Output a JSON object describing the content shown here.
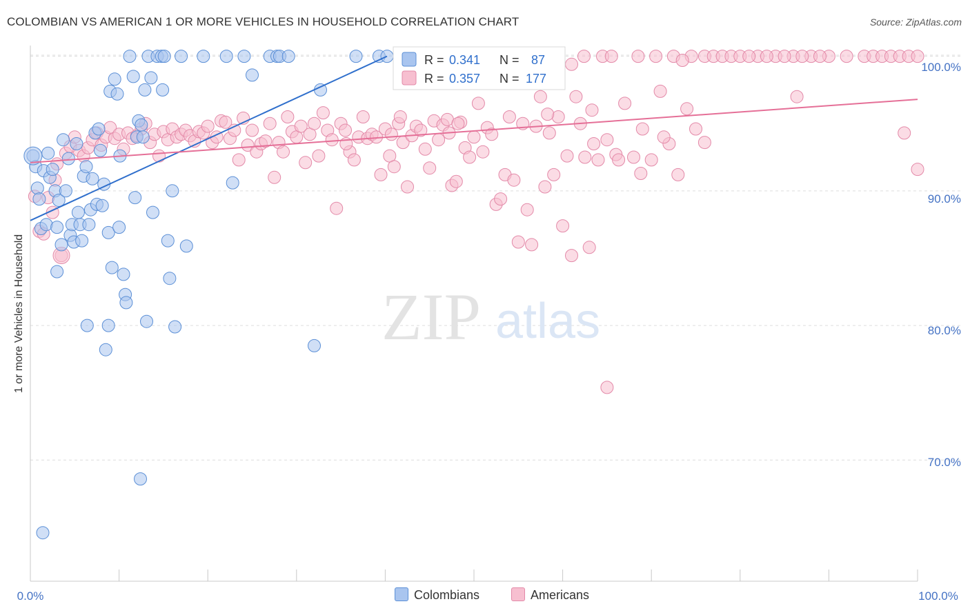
{
  "title": "COLOMBIAN VS AMERICAN 1 OR MORE VEHICLES IN HOUSEHOLD CORRELATION CHART",
  "source": "Source: ZipAtlas.com",
  "watermark": {
    "zip": "ZIP",
    "atlas": "atlas"
  },
  "colors": {
    "colombians_fill": "#a9c5ef",
    "colombians_stroke": "#5b8fd6",
    "colombians_line": "#2f6fcc",
    "americans_fill": "#f7bfd0",
    "americans_stroke": "#e389a8",
    "americans_line": "#e56f97",
    "axis_text": "#4472c4",
    "grid": "#dddddd"
  },
  "legend": {
    "rows": [
      {
        "r_label": "R =",
        "r_value": "0.341",
        "n_label": "N =",
        "n_value": "87"
      },
      {
        "r_label": "R =",
        "r_value": "0.357",
        "n_label": "N =",
        "n_value": "177"
      }
    ]
  },
  "bottom_legend": [
    "Colombians",
    "Americans"
  ],
  "chart_data": {
    "type": "scatter",
    "title": "COLOMBIAN VS AMERICAN 1 OR MORE VEHICLES IN HOUSEHOLD CORRELATION CHART",
    "xlabel": "",
    "ylabel": "1 or more Vehicles in Household",
    "xlim": [
      0,
      100
    ],
    "ylim": [
      61.0,
      100.8
    ],
    "x_tick_labels": [
      "0.0%",
      "100.0%"
    ],
    "y_ticks": [
      70,
      80,
      90,
      100
    ],
    "y_tick_labels": [
      "70.0%",
      "80.0%",
      "90.0%",
      "100.0%"
    ],
    "grid": true,
    "legend_position": "top-center",
    "series": [
      {
        "name": "Colombians",
        "r": 0.341,
        "n": 87,
        "trend": {
          "x0": 0,
          "y0": 87.8,
          "x1": 40.2,
          "y1": 100.0
        },
        "points": [
          [
            0.3,
            92.6
          ],
          [
            0.6,
            91.8
          ],
          [
            0.8,
            90.2
          ],
          [
            1.0,
            89.4
          ],
          [
            1.2,
            87.2
          ],
          [
            1.5,
            91.5
          ],
          [
            1.8,
            87.5
          ],
          [
            2.0,
            92.8
          ],
          [
            2.2,
            91.0
          ],
          [
            2.5,
            91.6
          ],
          [
            2.8,
            90.0
          ],
          [
            3.0,
            87.3
          ],
          [
            3.2,
            89.3
          ],
          [
            3.5,
            86.0
          ],
          [
            3.7,
            93.8
          ],
          [
            4.0,
            90.0
          ],
          [
            4.3,
            92.4
          ],
          [
            4.5,
            86.7
          ],
          [
            4.7,
            87.5
          ],
          [
            4.9,
            86.2
          ],
          [
            5.2,
            93.5
          ],
          [
            5.4,
            88.4
          ],
          [
            5.6,
            87.5
          ],
          [
            5.8,
            86.3
          ],
          [
            6.0,
            91.1
          ],
          [
            6.3,
            91.8
          ],
          [
            6.6,
            87.5
          ],
          [
            6.8,
            88.6
          ],
          [
            7.0,
            90.9
          ],
          [
            7.3,
            94.3
          ],
          [
            7.5,
            89.0
          ],
          [
            7.7,
            94.6
          ],
          [
            7.9,
            93.0
          ],
          [
            8.1,
            88.9
          ],
          [
            8.3,
            90.5
          ],
          [
            8.5,
            78.2
          ],
          [
            8.8,
            86.9
          ],
          [
            9.0,
            97.4
          ],
          [
            9.2,
            84.3
          ],
          [
            9.5,
            98.3
          ],
          [
            9.8,
            97.2
          ],
          [
            10.0,
            87.3
          ],
          [
            10.1,
            92.6
          ],
          [
            10.5,
            83.8
          ],
          [
            10.7,
            82.3
          ],
          [
            10.8,
            81.7
          ],
          [
            11.2,
            100.0
          ],
          [
            11.6,
            98.5
          ],
          [
            11.8,
            89.5
          ],
          [
            12.0,
            94.0
          ],
          [
            12.2,
            95.2
          ],
          [
            12.5,
            94.9
          ],
          [
            12.7,
            94.0
          ],
          [
            12.9,
            97.5
          ],
          [
            13.1,
            80.3
          ],
          [
            13.3,
            100.0
          ],
          [
            13.6,
            98.4
          ],
          [
            13.8,
            88.4
          ],
          [
            14.3,
            100.0
          ],
          [
            14.8,
            100.0
          ],
          [
            14.9,
            97.5
          ],
          [
            15.1,
            100.0
          ],
          [
            15.5,
            86.3
          ],
          [
            15.7,
            83.5
          ],
          [
            16.0,
            90.0
          ],
          [
            16.3,
            79.9
          ],
          [
            17.0,
            100.0
          ],
          [
            17.6,
            85.9
          ],
          [
            19.5,
            100.0
          ],
          [
            22.1,
            100.0
          ],
          [
            22.8,
            90.6
          ],
          [
            24.1,
            100.0
          ],
          [
            25.0,
            98.6
          ],
          [
            27.0,
            100.0
          ],
          [
            27.8,
            100.0
          ],
          [
            28.1,
            100.0
          ],
          [
            29.1,
            100.0
          ],
          [
            32.7,
            97.5
          ],
          [
            32.0,
            78.5
          ],
          [
            36.7,
            100.0
          ],
          [
            39.3,
            100.0
          ],
          [
            40.2,
            100.0
          ],
          [
            12.4,
            68.6
          ],
          [
            1.4,
            64.6
          ],
          [
            3.0,
            84.0
          ],
          [
            8.8,
            80.0
          ],
          [
            6.4,
            80.0
          ]
        ]
      },
      {
        "name": "Americans",
        "r": 0.357,
        "n": 177,
        "trend": {
          "x0": 0,
          "y0": 92.1,
          "x1": 100,
          "y1": 96.8
        },
        "points": [
          [
            0.5,
            89.6
          ],
          [
            1.0,
            87.0
          ],
          [
            1.5,
            86.8
          ],
          [
            2.0,
            89.5
          ],
          [
            2.5,
            88.4
          ],
          [
            2.8,
            90.8
          ],
          [
            3.0,
            92.0
          ],
          [
            3.5,
            85.2
          ],
          [
            4.0,
            92.8
          ],
          [
            4.5,
            93.3
          ],
          [
            5.0,
            94.0
          ],
          [
            5.5,
            93.0
          ],
          [
            6.0,
            92.6
          ],
          [
            6.5,
            93.2
          ],
          [
            7.0,
            93.8
          ],
          [
            7.5,
            94.3
          ],
          [
            8.0,
            93.4
          ],
          [
            8.5,
            94.0
          ],
          [
            9.0,
            94.7
          ],
          [
            9.5,
            93.9
          ],
          [
            10.0,
            94.2
          ],
          [
            10.5,
            93.1
          ],
          [
            11.0,
            94.3
          ],
          [
            11.5,
            93.9
          ],
          [
            12.0,
            94.1
          ],
          [
            12.5,
            94.6
          ],
          [
            13.0,
            95.0
          ],
          [
            13.5,
            93.6
          ],
          [
            14.0,
            94.2
          ],
          [
            14.5,
            92.6
          ],
          [
            15.0,
            94.4
          ],
          [
            15.5,
            93.8
          ],
          [
            16.0,
            94.6
          ],
          [
            16.5,
            94.0
          ],
          [
            17.0,
            94.2
          ],
          [
            17.5,
            94.5
          ],
          [
            18.0,
            94.1
          ],
          [
            18.5,
            93.7
          ],
          [
            19.0,
            94.4
          ],
          [
            19.5,
            94.3
          ],
          [
            20.0,
            94.8
          ],
          [
            20.5,
            93.6
          ],
          [
            21.0,
            94.0
          ],
          [
            21.5,
            95.2
          ],
          [
            22.0,
            95.1
          ],
          [
            22.5,
            93.9
          ],
          [
            23.0,
            94.5
          ],
          [
            23.5,
            92.3
          ],
          [
            24.0,
            95.4
          ],
          [
            24.5,
            93.4
          ],
          [
            25.0,
            94.5
          ],
          [
            25.5,
            92.9
          ],
          [
            26.0,
            93.5
          ],
          [
            26.5,
            93.7
          ],
          [
            27.0,
            95.0
          ],
          [
            27.5,
            91.0
          ],
          [
            28.0,
            93.6
          ],
          [
            28.5,
            92.9
          ],
          [
            29.0,
            95.5
          ],
          [
            29.5,
            94.4
          ],
          [
            30.0,
            94.0
          ],
          [
            30.5,
            94.8
          ],
          [
            31.0,
            92.1
          ],
          [
            31.5,
            94.2
          ],
          [
            32.0,
            95.0
          ],
          [
            32.5,
            92.6
          ],
          [
            33.0,
            95.8
          ],
          [
            33.5,
            94.5
          ],
          [
            34.0,
            93.8
          ],
          [
            34.5,
            88.7
          ],
          [
            35.0,
            95.0
          ],
          [
            35.5,
            94.5
          ],
          [
            36.0,
            92.9
          ],
          [
            36.5,
            92.3
          ],
          [
            37.0,
            94.0
          ],
          [
            37.5,
            95.5
          ],
          [
            38.0,
            93.9
          ],
          [
            38.5,
            94.2
          ],
          [
            39.0,
            94.0
          ],
          [
            39.5,
            91.2
          ],
          [
            40.0,
            94.6
          ],
          [
            40.5,
            92.6
          ],
          [
            41.0,
            91.8
          ],
          [
            41.5,
            95.0
          ],
          [
            42.0,
            93.6
          ],
          [
            42.5,
            90.3
          ],
          [
            43.0,
            94.1
          ],
          [
            43.5,
            94.8
          ],
          [
            44.0,
            94.5
          ],
          [
            44.5,
            93.1
          ],
          [
            45.0,
            91.7
          ],
          [
            45.5,
            95.2
          ],
          [
            46.0,
            93.8
          ],
          [
            46.5,
            94.9
          ],
          [
            47.0,
            95.3
          ],
          [
            47.5,
            90.4
          ],
          [
            48.0,
            90.7
          ],
          [
            48.5,
            95.1
          ],
          [
            49.0,
            93.2
          ],
          [
            49.5,
            92.5
          ],
          [
            50.0,
            94.0
          ],
          [
            50.5,
            96.5
          ],
          [
            51.0,
            92.9
          ],
          [
            51.5,
            94.7
          ],
          [
            52.0,
            94.2
          ],
          [
            52.5,
            89.0
          ],
          [
            53.0,
            89.4
          ],
          [
            53.5,
            91.2
          ],
          [
            54.0,
            95.5
          ],
          [
            54.5,
            90.8
          ],
          [
            55.0,
            86.2
          ],
          [
            55.5,
            95.0
          ],
          [
            56.0,
            88.6
          ],
          [
            56.5,
            86.0
          ],
          [
            57.0,
            94.8
          ],
          [
            57.5,
            97.0
          ],
          [
            58.0,
            90.3
          ],
          [
            58.5,
            94.3
          ],
          [
            59.0,
            91.2
          ],
          [
            59.5,
            95.5
          ],
          [
            60.0,
            87.4
          ],
          [
            60.5,
            92.6
          ],
          [
            61.0,
            85.2
          ],
          [
            61.5,
            97.0
          ],
          [
            62.0,
            95.0
          ],
          [
            62.5,
            92.5
          ],
          [
            63.0,
            85.8
          ],
          [
            63.5,
            93.5
          ],
          [
            64.0,
            92.3
          ],
          [
            65.0,
            93.8
          ],
          [
            66.0,
            92.7
          ],
          [
            67.0,
            96.5
          ],
          [
            68.0,
            92.5
          ],
          [
            69.0,
            94.6
          ],
          [
            70.0,
            92.3
          ],
          [
            71.0,
            97.4
          ],
          [
            72.0,
            93.5
          ],
          [
            73.0,
            91.2
          ],
          [
            74.0,
            96.1
          ],
          [
            75.0,
            94.6
          ],
          [
            76.0,
            100.0
          ],
          [
            77.0,
            100.0
          ],
          [
            78.0,
            100.0
          ],
          [
            79.0,
            100.0
          ],
          [
            80.0,
            100.0
          ],
          [
            82.0,
            100.0
          ],
          [
            84.0,
            100.0
          ],
          [
            86.0,
            100.0
          ],
          [
            88.0,
            100.0
          ],
          [
            90.0,
            100.0
          ],
          [
            92.0,
            100.0
          ],
          [
            94.0,
            100.0
          ],
          [
            95.0,
            100.0
          ],
          [
            96.0,
            100.0
          ],
          [
            97.0,
            100.0
          ],
          [
            98.0,
            100.0
          ],
          [
            99.0,
            100.0
          ],
          [
            100.0,
            100.0
          ],
          [
            62.4,
            100.0
          ],
          [
            64.5,
            100.0
          ],
          [
            65.5,
            100.0
          ],
          [
            68.5,
            100.0
          ],
          [
            70.5,
            100.0
          ],
          [
            72.5,
            100.0
          ],
          [
            74.5,
            100.0
          ],
          [
            81.0,
            100.0
          ],
          [
            83.0,
            100.0
          ],
          [
            85.0,
            100.0
          ],
          [
            87.0,
            100.0
          ],
          [
            89.0,
            100.0
          ],
          [
            65.0,
            75.4
          ],
          [
            61.0,
            99.4
          ],
          [
            73.5,
            99.7
          ],
          [
            86.4,
            97.0
          ],
          [
            98.5,
            94.3
          ],
          [
            100.0,
            91.6
          ],
          [
            47.2,
            94.3
          ],
          [
            48.2,
            95.0
          ],
          [
            35.6,
            93.5
          ],
          [
            40.7,
            94.2
          ],
          [
            41.7,
            95.5
          ],
          [
            58.3,
            95.7
          ],
          [
            63.3,
            96.0
          ],
          [
            66.3,
            92.3
          ],
          [
            68.8,
            91.3
          ],
          [
            71.4,
            94.0
          ],
          [
            76.0,
            93.6
          ]
        ]
      }
    ]
  }
}
